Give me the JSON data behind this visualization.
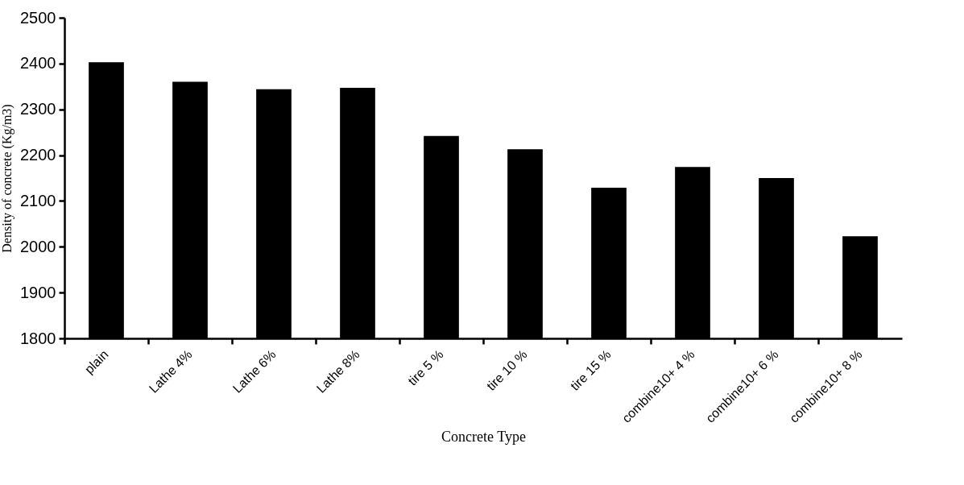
{
  "chart_data": {
    "type": "bar",
    "xlabel": "Concrete Type",
    "ylabel": "Density of concrete  (Kg/m3)",
    "categories": [
      "plain",
      "Lathe 4%",
      "Lathe 6%",
      "Lathe 8%",
      "tire 5 %",
      "tire 10 %",
      "tire 15 %",
      "combine10+ 4 %",
      "combine10+ 6 %",
      "combine10+ 8 %"
    ],
    "values": [
      2403,
      2360,
      2344,
      2347,
      2242,
      2213,
      2129,
      2174,
      2150,
      2023
    ],
    "color": "#000000",
    "ylim": [
      1800,
      2500
    ],
    "yticks": [
      1800,
      1900,
      2000,
      2100,
      2200,
      2300,
      2400,
      2500
    ],
    "grid": false
  }
}
